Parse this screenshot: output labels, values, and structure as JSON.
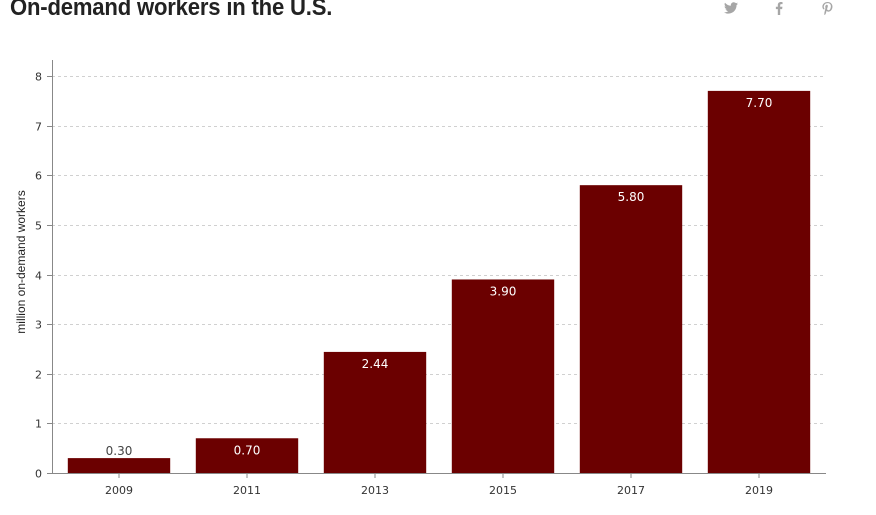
{
  "page": {
    "title": "On-demand workers in the U.S."
  },
  "share": {
    "icons": [
      "twitter-icon",
      "facebook-icon",
      "pinterest-icon"
    ]
  },
  "chart_data": {
    "type": "bar",
    "title": "On-demand workers in the U.S.",
    "xlabel": "",
    "ylabel": "million on-demand workers",
    "categories": [
      "2009",
      "2011",
      "2013",
      "2015",
      "2017",
      "2019"
    ],
    "values": [
      0.3,
      0.7,
      2.44,
      3.9,
      5.8,
      7.7
    ],
    "data_labels": [
      "0.30",
      "0.70",
      "2.44",
      "3.90",
      "5.80",
      "7.70"
    ],
    "ylim": [
      0,
      8
    ],
    "yticks": [
      "0",
      "1",
      "2",
      "3",
      "4",
      "5",
      "6",
      "7",
      "8"
    ],
    "grid": true,
    "legend": "none",
    "colors": {
      "bar": "#6b0000",
      "grid": "#d0d0d0",
      "axis": "#888888",
      "label_inside": "#ffffff",
      "label_outside": "#444444"
    }
  }
}
